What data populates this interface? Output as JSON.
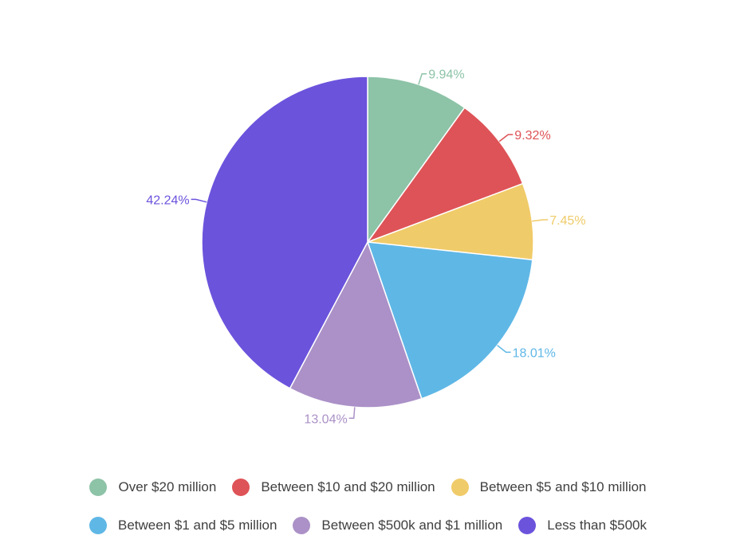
{
  "chart_data": {
    "type": "pie",
    "slices": [
      {
        "label": "Over $20 million",
        "value": 9.94,
        "value_label": "9.94%",
        "color": "#8dc3a7"
      },
      {
        "label": "Between $10 and $20 million",
        "value": 9.32,
        "value_label": "9.32%",
        "color": "#de5357"
      },
      {
        "label": "Between $5 and $10 million",
        "value": 7.45,
        "value_label": "7.45%",
        "color": "#f0cb69"
      },
      {
        "label": "Between $1 and $5 million",
        "value": 18.01,
        "value_label": "18.01%",
        "color": "#5fb7e6"
      },
      {
        "label": "Between $500k and $1 million",
        "value": 13.04,
        "value_label": "13.04%",
        "color": "#ab91c7"
      },
      {
        "label": "Less than $500k",
        "value": 42.24,
        "value_label": "42.24%",
        "color": "#6c53dc"
      }
    ],
    "legend_position": "bottom",
    "start_angle": "top",
    "direction": "clockwise"
  },
  "legend": {
    "rows": [
      [
        {
          "label": "Over $20 million",
          "color": "#8dc3a7"
        },
        {
          "label": "Between $10 and $20 million",
          "color": "#de5357"
        },
        {
          "label": "Between $5 and $10 million",
          "color": "#f0cb69"
        }
      ],
      [
        {
          "label": "Between $1 and $5 million",
          "color": "#5fb7e6"
        },
        {
          "label": "Between $500k and $1 million",
          "color": "#ab91c7"
        },
        {
          "label": "Less than $500k",
          "color": "#6c53dc"
        }
      ]
    ]
  }
}
